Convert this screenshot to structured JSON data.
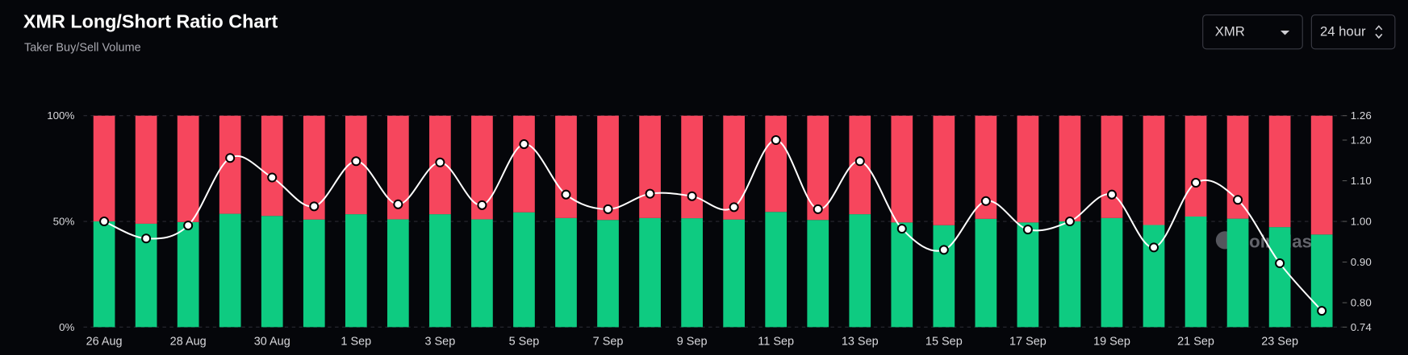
{
  "chart_data": {
    "type": "bar-line",
    "title": "XMR Long/Short Ratio Chart",
    "subtitle": "Taker Buy/Sell Volume",
    "controls": {
      "symbol": "XMR",
      "interval": "24 hour"
    },
    "watermark": "coinglass",
    "categories": [
      "26 Aug",
      null,
      "28 Aug",
      null,
      "30 Aug",
      null,
      "1 Sep",
      null,
      "3 Sep",
      null,
      "5 Sep",
      null,
      "7 Sep",
      null,
      "9 Sep",
      null,
      "11 Sep",
      null,
      "13 Sep",
      null,
      "15 Sep",
      null,
      "17 Sep",
      null,
      "19 Sep",
      null,
      "21 Sep",
      null,
      "23 Sep",
      null
    ],
    "series": [
      {
        "color": "#0ecb81",
        "values": [
          50,
          48.9,
          49.7,
          53.6,
          52.6,
          50.9,
          53.4,
          51.0,
          53.4,
          51.0,
          54.3,
          51.6,
          50.7,
          51.6,
          51.5,
          50.9,
          54.5,
          50.7,
          53.4,
          49.5,
          48.2,
          51.2,
          49.5,
          50,
          51.6,
          48.3,
          52.3,
          51.3,
          47.3,
          43.8
        ]
      },
      {
        "color": "#f6465d",
        "values": [
          50,
          51.1,
          50.3,
          46.4,
          47.4,
          49.1,
          46.6,
          49.0,
          46.6,
          49.0,
          45.7,
          48.4,
          49.3,
          48.4,
          48.5,
          49.1,
          45.5,
          49.3,
          46.6,
          50.5,
          51.8,
          48.8,
          50.5,
          50,
          48.4,
          51.7,
          47.7,
          48.7,
          52.7,
          56.2
        ]
      },
      {
        "color": "#ffffff",
        "axis": "y2",
        "values": [
          1.0,
          0.958,
          0.99,
          1.156,
          1.108,
          1.037,
          1.148,
          1.042,
          1.145,
          1.04,
          1.19,
          1.066,
          1.03,
          1.068,
          1.062,
          1.035,
          1.2,
          1.03,
          1.148,
          0.982,
          0.93,
          1.05,
          0.98,
          1.0,
          1.066,
          0.936,
          1.095,
          1.053,
          0.897,
          0.78
        ]
      }
    ],
    "ylim": [
      0,
      100
    ],
    "yticks": [
      {
        "value": 0,
        "label": "0%"
      },
      {
        "value": 50,
        "label": "50%"
      },
      {
        "value": 100,
        "label": "100%"
      }
    ],
    "y2lim": [
      0.74,
      1.26
    ],
    "y2ticks": [
      0.74,
      {
        "value": 0.8,
        "label": "0.80"
      },
      {
        "value": 0.9,
        "label": "0.90"
      },
      {
        "value": 1.0,
        "label": "1.00"
      },
      {
        "value": 1.1,
        "label": "1.10"
      },
      {
        "value": 1.2,
        "label": "1.20"
      },
      1.26
    ],
    "grid": true
  }
}
